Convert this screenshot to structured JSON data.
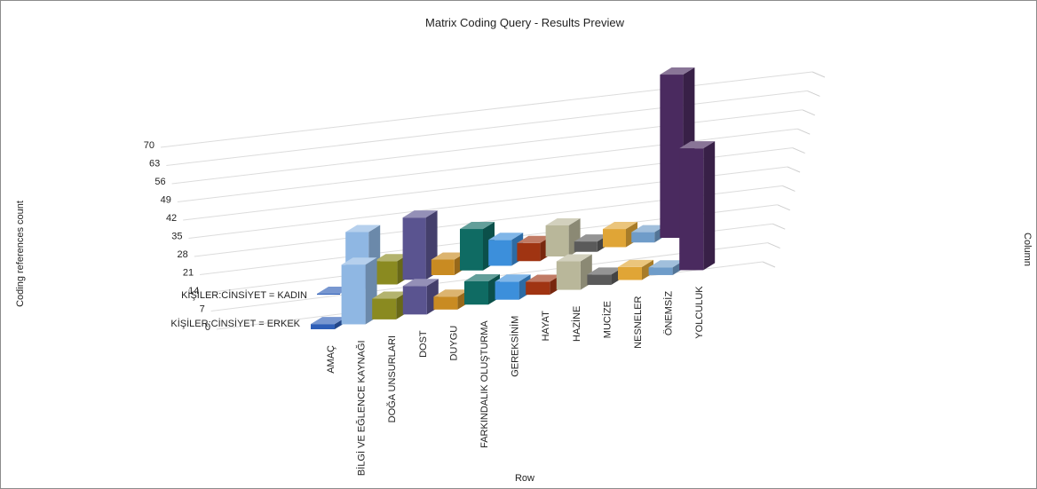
{
  "chart_data": {
    "type": "bar",
    "title": "Matrix Coding Query - Results Preview",
    "xlabel": "Row",
    "ylabel": "Coding references count",
    "zlabel": "Column",
    "y_ticks": [
      "70",
      "63",
      "56",
      "49",
      "42",
      "35",
      "28",
      "21",
      "14",
      "7",
      "0"
    ],
    "ylim": [
      0,
      70
    ],
    "grid": true,
    "categories": [
      "AMAÇ",
      "BİLGİ VE EĞLENCE KAYNAĞI",
      "DOĞA UNSURLARI",
      "DOST",
      "DUYGU",
      "FARKINDALIK OLUŞTURMA",
      "GEREKSİNİM",
      "HAYAT",
      "HAZİNE",
      "MUCİZE",
      "NESNELER",
      "ÖNEMSİZ",
      "YOLCULUK"
    ],
    "series": [
      {
        "name": "KİŞİLER:CİNSİYET = KADIN",
        "values": [
          0,
          22,
          9,
          24,
          6,
          16,
          10,
          7,
          12,
          4,
          7,
          4,
          63
        ]
      },
      {
        "name": "KİŞİLER:CİNSİYET = ERKEK",
        "values": [
          2,
          23,
          8,
          11,
          5,
          9,
          7,
          5,
          11,
          4,
          5,
          3,
          47
        ]
      }
    ],
    "colors": [
      "#2f5fb7",
      "#8fb7e3",
      "#8a8a20",
      "#5a5490",
      "#c98b22",
      "#0f6b63",
      "#3c8fdb",
      "#a03412",
      "#b9b79a",
      "#5a5a5a",
      "#e0a536",
      "#6f9cc9",
      "#4a2a5f"
    ]
  }
}
